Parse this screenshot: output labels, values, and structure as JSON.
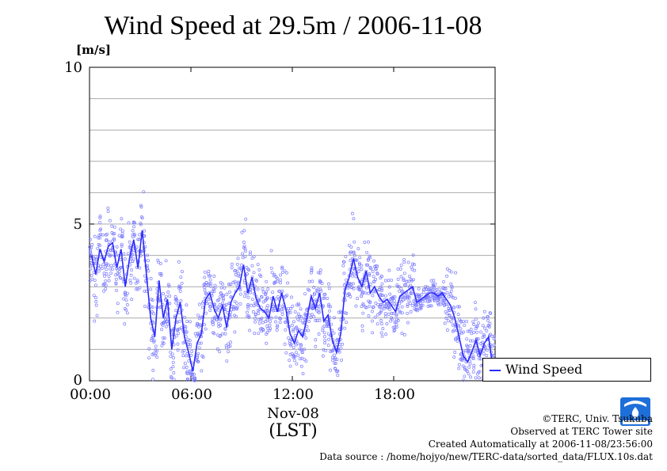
{
  "header": {
    "title": "Wind Speed at 29.5m / 2006-11-08",
    "unit": "[m/s]"
  },
  "axis": {
    "y_ticks": [
      "10",
      "5",
      "0"
    ],
    "x_ticks": [
      "00:00",
      "06:00",
      "12:00",
      "18:00"
    ],
    "date": "Nov-08",
    "time_zone": "(LST)"
  },
  "legend": {
    "label": "Wind Speed"
  },
  "footer": {
    "line1": "©TERC, Univ. Tsukuba",
    "line2": "Observed at TERC Tower site",
    "line3": "Created Automatically at 2006-11-08/23:56:00",
    "line4": "Data source : /home/hojyo/new/TERC-data/sorted_data/FLUX.10s.dat"
  },
  "logo": {
    "text": "TERC",
    "color": "#1e6fd9"
  },
  "chart_data": {
    "type": "line",
    "title": "Wind Speed at 29.5m / 2006-11-08",
    "ylabel": "[m/s]",
    "xlabel": "Nov-08 (LST)",
    "xlim": [
      "00:00",
      "24:00"
    ],
    "ylim": [
      0,
      10
    ],
    "y_ticks": [
      0,
      5,
      10
    ],
    "x_ticks": [
      "00:00",
      "06:00",
      "12:00",
      "18:00"
    ],
    "grid": true,
    "legend_position": "right-bottom-outside",
    "colors": {
      "series": "#2b2bff",
      "scatter": "#7b7bff",
      "grid": "#aaaaaa"
    },
    "series": [
      {
        "name": "Wind Speed",
        "x": [
          "00:00",
          "00:15",
          "00:30",
          "00:45",
          "01:00",
          "01:15",
          "01:30",
          "01:45",
          "02:00",
          "02:15",
          "02:30",
          "02:45",
          "03:00",
          "03:15",
          "03:30",
          "03:45",
          "04:00",
          "04:15",
          "04:30",
          "04:45",
          "05:00",
          "05:15",
          "05:30",
          "05:45",
          "06:00",
          "06:15",
          "06:30",
          "06:45",
          "07:00",
          "07:15",
          "07:30",
          "07:45",
          "08:00",
          "08:15",
          "08:30",
          "08:45",
          "09:00",
          "09:15",
          "09:30",
          "09:45",
          "10:00",
          "10:15",
          "10:30",
          "10:45",
          "11:00",
          "11:15",
          "11:30",
          "11:45",
          "12:00",
          "12:15",
          "12:30",
          "12:45",
          "13:00",
          "13:15",
          "13:30",
          "13:45",
          "14:00",
          "14:15",
          "14:30",
          "14:45",
          "15:00",
          "15:15",
          "15:30",
          "15:45",
          "16:00",
          "16:15",
          "16:30",
          "16:45",
          "17:00",
          "17:15",
          "17:30",
          "17:45",
          "18:00",
          "18:15",
          "18:30",
          "18:45",
          "19:00",
          "19:15",
          "19:30",
          "19:45",
          "20:00",
          "20:15",
          "20:30",
          "20:45",
          "21:00",
          "21:15",
          "21:30",
          "21:45",
          "22:00",
          "22:15",
          "22:30",
          "22:45",
          "23:00",
          "23:15",
          "23:30",
          "23:45"
        ],
        "values": [
          4.0,
          3.4,
          4.2,
          3.8,
          4.3,
          4.4,
          3.6,
          4.2,
          3.0,
          3.9,
          4.5,
          3.6,
          4.8,
          3.4,
          2.0,
          1.4,
          3.2,
          2.0,
          2.6,
          1.0,
          2.0,
          2.5,
          1.4,
          0.9,
          0.3,
          1.2,
          1.5,
          2.6,
          2.8,
          2.3,
          2.0,
          2.4,
          1.7,
          2.5,
          2.8,
          3.0,
          3.7,
          2.8,
          3.3,
          2.6,
          2.3,
          2.2,
          2.0,
          2.7,
          2.2,
          2.8,
          2.3,
          1.5,
          1.2,
          1.6,
          1.4,
          2.0,
          2.7,
          2.3,
          2.8,
          1.9,
          2.1,
          1.3,
          0.9,
          1.5,
          2.9,
          3.3,
          3.9,
          3.3,
          3.0,
          3.5,
          2.8,
          3.0,
          2.7,
          2.5,
          2.6,
          2.4,
          2.2,
          2.7,
          2.8,
          2.9,
          3.0,
          2.5,
          2.6,
          2.7,
          2.8,
          2.8,
          2.7,
          2.8,
          2.6,
          2.4,
          2.0,
          1.4,
          0.8,
          0.6,
          0.9,
          1.3,
          0.8,
          1.2,
          1.4,
          0.4
        ]
      }
    ]
  }
}
